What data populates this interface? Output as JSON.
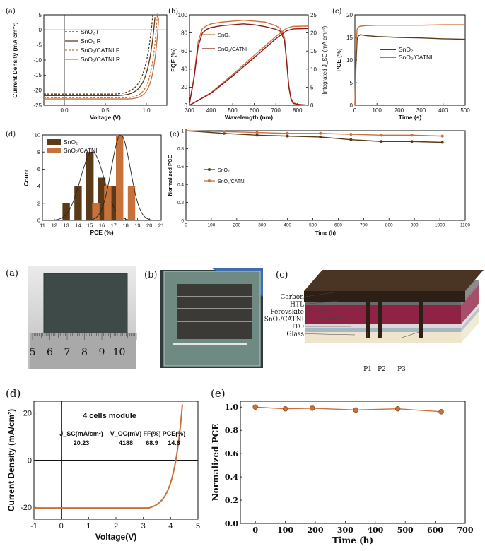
{
  "colors": {
    "brown": "#5a3a17",
    "orange": "#c8713a",
    "darkred": "#8b1c1c",
    "orange_eqe": "#d2703a",
    "black": "#111111"
  },
  "chart_data": [
    {
      "id": "a_top",
      "type": "line",
      "panel_label": "(a)",
      "xlabel": "Voltage (V)",
      "ylabel": "Current Density (mA cm⁻²)",
      "xlim": [
        -0.25,
        1.25
      ],
      "ylim": [
        -25,
        5
      ],
      "xticks": [
        0.0,
        0.5,
        1.0
      ],
      "xtick_labels": [
        "0.0",
        "0.5",
        "1.0"
      ],
      "yticks": [
        -25,
        -20,
        -15,
        -10,
        -5,
        0,
        5
      ],
      "ytick_labels": [
        "-25",
        "-20",
        "-15",
        "-10",
        "-5",
        "0",
        "5"
      ],
      "legend_position": "top-left",
      "series": [
        {
          "name": "SnO₂ F",
          "dash": true,
          "color": "#5a3a17",
          "jsc": -21.3,
          "voc": 1.06,
          "vk": 0.6,
          "k": 0.09
        },
        {
          "name": "SnO₂ R",
          "dash": false,
          "color": "#5a3a17",
          "jsc": -21.8,
          "voc": 1.09,
          "vk": 0.64,
          "k": 0.085
        },
        {
          "name": "SnO₂/CATNI F",
          "dash": true,
          "color": "#c8713a",
          "jsc": -22.5,
          "voc": 1.12,
          "vk": 0.75,
          "k": 0.07
        },
        {
          "name": "SnO₂/CATNI R",
          "dash": false,
          "color": "#c8713a",
          "jsc": -22.9,
          "voc": 1.14,
          "vk": 0.78,
          "k": 0.065
        }
      ]
    },
    {
      "id": "b_top",
      "type": "line",
      "panel_label": "(b)",
      "xlabel": "Wavelength (nm)",
      "ylabel": "EQE (%)",
      "y2label": "Integrated J_SC (mA cm⁻²)",
      "xlim": [
        300,
        850
      ],
      "ylim": [
        0,
        100
      ],
      "y2lim": [
        0,
        25
      ],
      "xticks": [
        300,
        400,
        500,
        600,
        700,
        800
      ],
      "yticks": [
        0,
        20,
        40,
        60,
        80,
        100
      ],
      "y2ticks": [
        0,
        5,
        10,
        15,
        20,
        25
      ],
      "legend_position": "top-left",
      "series": [
        {
          "name": "SnO₂",
          "color": "#d2703a",
          "eqe_x": [
            300,
            320,
            340,
            360,
            380,
            400,
            450,
            500,
            550,
            600,
            650,
            700,
            720,
            740,
            750,
            760,
            770,
            780,
            800,
            850
          ],
          "eqe_y": [
            2,
            30,
            70,
            85,
            88,
            90,
            92,
            93,
            94,
            93,
            92,
            88,
            85,
            75,
            50,
            22,
            8,
            3,
            1,
            0
          ],
          "jsc_x": [
            300,
            400,
            500,
            600,
            700,
            750,
            780,
            850
          ],
          "jsc_y": [
            0,
            3.5,
            8.5,
            13.8,
            19.0,
            21.3,
            21.8,
            21.9
          ]
        },
        {
          "name": "SnO₂/CATNI",
          "color": "#8b1c1c",
          "eqe_x": [
            300,
            320,
            340,
            360,
            380,
            400,
            450,
            500,
            550,
            600,
            650,
            700,
            720,
            740,
            750,
            760,
            770,
            780,
            800,
            850
          ],
          "eqe_y": [
            2,
            28,
            65,
            80,
            84,
            86,
            88,
            89,
            90,
            89,
            87,
            84,
            82,
            72,
            48,
            20,
            7,
            2,
            1,
            0
          ],
          "jsc_x": [
            300,
            400,
            500,
            600,
            700,
            750,
            780,
            850
          ],
          "jsc_y": [
            0,
            3.3,
            8.1,
            13.2,
            18.4,
            20.6,
            21.1,
            21.2
          ]
        }
      ]
    },
    {
      "id": "c_top",
      "type": "line",
      "panel_label": "(c)",
      "xlabel": "Time (s)",
      "ylabel": "PCE (%)",
      "xlim": [
        0,
        500
      ],
      "ylim": [
        0,
        20
      ],
      "xticks": [
        0,
        100,
        200,
        300,
        400,
        500
      ],
      "yticks": [
        0,
        5,
        10,
        15,
        20
      ],
      "legend_position": "middle-right",
      "series": [
        {
          "name": "SnO₂",
          "color": "#5a3a17",
          "x": [
            0,
            5,
            10,
            15,
            25,
            50,
            100,
            200,
            300,
            400,
            500
          ],
          "y": [
            0,
            9,
            14.5,
            15.3,
            15.6,
            15.4,
            15.2,
            15.0,
            14.9,
            14.7,
            14.6
          ]
        },
        {
          "name": "SnO₂/CATNI",
          "color": "#c8713a",
          "x": [
            0,
            5,
            10,
            15,
            25,
            50,
            100,
            200,
            300,
            400,
            500
          ],
          "y": [
            0,
            12,
            16.8,
            17.3,
            17.5,
            17.6,
            17.7,
            17.7,
            17.7,
            17.8,
            17.8
          ]
        }
      ]
    },
    {
      "id": "d_top",
      "type": "bar",
      "panel_label": "(d)",
      "xlabel": "PCE (%)",
      "ylabel": "Count",
      "xlim": [
        11,
        21
      ],
      "ylim": [
        0,
        10
      ],
      "xticks": [
        11,
        12,
        13,
        14,
        15,
        16,
        17,
        18,
        19,
        20,
        21
      ],
      "yticks": [
        0,
        2,
        4,
        6,
        8,
        10
      ],
      "legend_position": "top-left",
      "series": [
        {
          "name": "SnO₂",
          "color": "#5a3a17",
          "bins": [
            13,
            14,
            15,
            16,
            17
          ],
          "values": [
            2,
            4,
            8,
            5,
            4
          ],
          "mu": 15.2,
          "sigma": 1.0,
          "peak": 8
        },
        {
          "name": "SnO₂/CATNI",
          "color": "#c8713a",
          "bins": [
            15.5,
            16.5,
            17.5,
            18.5
          ],
          "values": [
            2,
            4,
            10,
            4
          ],
          "mu": 17.6,
          "sigma": 0.8,
          "peak": 10
        }
      ]
    },
    {
      "id": "e_top",
      "type": "line",
      "panel_label": "(e)",
      "xlabel": "Time (h)",
      "ylabel": "Normalized PCE",
      "xlim": [
        0,
        1100
      ],
      "ylim": [
        0,
        1.0
      ],
      "xticks": [
        0,
        100,
        200,
        300,
        400,
        500,
        600,
        700,
        800,
        900,
        1000,
        1100
      ],
      "yticks": [
        0.0,
        0.2,
        0.4,
        0.6,
        0.8,
        1.0
      ],
      "legend_position": "left",
      "series": [
        {
          "name": "SnO₂",
          "color": "#5a3a17",
          "x": [
            0,
            150,
            280,
            400,
            530,
            650,
            770,
            890,
            1010
          ],
          "y": [
            1.0,
            0.97,
            0.95,
            0.94,
            0.93,
            0.9,
            0.88,
            0.88,
            0.87
          ]
        },
        {
          "name": "SnO₂/CATNI",
          "color": "#c8713a",
          "x": [
            0,
            150,
            280,
            400,
            530,
            650,
            770,
            890,
            1010
          ],
          "y": [
            1.0,
            0.99,
            0.98,
            0.97,
            0.97,
            0.96,
            0.95,
            0.95,
            0.94
          ]
        }
      ]
    },
    {
      "id": "d_bottom",
      "type": "line",
      "panel_label": "(d)",
      "xlabel": "Voltage(V)",
      "ylabel": "Current Density (mA/cm²)",
      "xlim": [
        -1,
        5
      ],
      "ylim": [
        -25,
        25
      ],
      "xticks": [
        -1,
        0,
        1,
        2,
        3,
        4,
        5
      ],
      "yticks": [
        -20,
        0,
        20
      ],
      "annotation_title": "4 cells module",
      "table_headers": [
        "J_SC(mA/cm²)",
        "V_OC(mV)",
        "FF(%)",
        "PCE(%)"
      ],
      "table_values": [
        "20.23",
        "4188",
        "68.9",
        "14.6"
      ],
      "series": [
        {
          "name": "",
          "color": "#c8713a",
          "jsc": -20.23,
          "voc": 4.19,
          "vk": 3.2,
          "k": 0.32
        }
      ]
    },
    {
      "id": "e_bottom",
      "type": "line",
      "panel_label": "(e)",
      "xlabel": "Time (h)",
      "ylabel": "Normalized PCE",
      "xlim": [
        -50,
        700
      ],
      "ylim": [
        0.0,
        1.05
      ],
      "xticks": [
        0,
        100,
        200,
        300,
        400,
        500,
        600,
        700
      ],
      "yticks": [
        0.0,
        0.2,
        0.4,
        0.6,
        0.8,
        1.0
      ],
      "ytick_labels": [
        "0.0",
        "0.2",
        "0.4",
        "0.6",
        "0.8",
        "1.0"
      ],
      "series": [
        {
          "name": "",
          "color": "#c8713a",
          "x": [
            0,
            100,
            190,
            335,
            475,
            620
          ],
          "y": [
            1.0,
            0.985,
            0.99,
            0.975,
            0.985,
            0.96
          ]
        }
      ]
    }
  ],
  "photos": {
    "a_label": "(a)",
    "b_label": "(b)",
    "c_label": "(c)",
    "ruler_numbers": [
      "5",
      "6",
      "7",
      "8",
      "9",
      "10"
    ],
    "layers": [
      "Carbon",
      "HTL",
      "Perovskite",
      "SnO₂/CATNI",
      "ITO",
      "Glass"
    ],
    "scribes": [
      "P1",
      "P2",
      "P3"
    ]
  }
}
